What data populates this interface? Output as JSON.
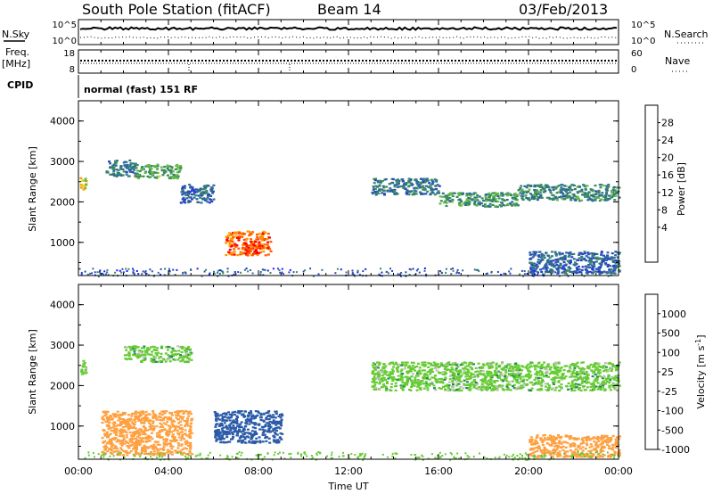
{
  "header": {
    "station": "South Pole Station (fitACF)",
    "beam": "Beam 14",
    "date": "03/Feb/2013"
  },
  "top_panels": {
    "nsky_label": "N.Sky",
    "nsky_ticks": [
      "10^5",
      "10^0"
    ],
    "nsearch_label": "N.Search",
    "nsearch_ticks": [
      "10^5",
      "10^0"
    ],
    "freq_label_line1": "Freq.",
    "freq_label_line2": "[MHz]",
    "freq_ticks": [
      "18",
      "8"
    ],
    "nave_label": "Nave",
    "nave_ticks": [
      "60",
      "0"
    ],
    "cpid_label": "CPID",
    "cpid_text": "normal (fast) 151 RF"
  },
  "x_axis": {
    "label": "Time UT",
    "ticks": [
      "00:00",
      "04:00",
      "08:00",
      "12:00",
      "16:00",
      "20:00",
      "00:00"
    ]
  },
  "colors": {
    "power": [
      "#1a1aff",
      "#2a44c8",
      "#2e6c96",
      "#3a8a60",
      "#66bb44",
      "#e0d030",
      "#ff9a00",
      "#ff5a00",
      "#ff0000"
    ],
    "velocity": [
      "#ff0000",
      "#ff6a00",
      "#ffa040",
      "#c0c0b8",
      "#66cc33",
      "#2a8a5a",
      "#2a5aa8",
      "#1a3ad0"
    ]
  },
  "chart_data": [
    {
      "type": "heatmap",
      "name": "power",
      "ylabel": "Slant Range [km]",
      "ylim": [
        180,
        4500
      ],
      "yticks": [
        "4000",
        "3000",
        "2000",
        "1000"
      ],
      "xlim": [
        0,
        24
      ],
      "colorbar": {
        "label": "Power [dB]",
        "ticks": [
          "28",
          "24",
          "20",
          "16",
          "12",
          "8",
          "4"
        ],
        "range": [
          0,
          32
        ]
      },
      "features": [
        {
          "t0": 0.0,
          "t1": 0.3,
          "r0": 2300,
          "r1": 2650,
          "value": 20
        },
        {
          "t0": 1.2,
          "t1": 2.5,
          "r0": 2650,
          "r1": 3050,
          "value": 10
        },
        {
          "t0": 2.5,
          "t1": 4.5,
          "r0": 2600,
          "r1": 2950,
          "value": 14
        },
        {
          "t0": 4.5,
          "t1": 6.0,
          "r0": 2000,
          "r1": 2450,
          "value": 8
        },
        {
          "t0": 6.5,
          "t1": 8.5,
          "r0": 700,
          "r1": 1300,
          "value": 26
        },
        {
          "t0": 7.3,
          "t1": 8.0,
          "r0": 750,
          "r1": 1050,
          "value": 30
        },
        {
          "t0": 13.0,
          "t1": 16.0,
          "r0": 2200,
          "r1": 2600,
          "value": 10
        },
        {
          "t0": 16.0,
          "t1": 19.5,
          "r0": 1900,
          "r1": 2250,
          "value": 13
        },
        {
          "t0": 19.5,
          "t1": 24.0,
          "r0": 2050,
          "r1": 2450,
          "value": 11
        },
        {
          "t0": 20.0,
          "t1": 24.0,
          "r0": 250,
          "r1": 800,
          "value": 8
        }
      ]
    },
    {
      "type": "heatmap",
      "name": "velocity",
      "ylabel": "Slant Range [km]",
      "ylim": [
        180,
        4500
      ],
      "yticks": [
        "4000",
        "3000",
        "2000",
        "1000"
      ],
      "xlim": [
        0,
        24
      ],
      "colorbar": {
        "label": "Velocity [m s^-1]",
        "ticks": [
          "1000",
          "500",
          "100",
          "25",
          "-25",
          "-100",
          "-500",
          "-1000"
        ]
      },
      "features": [
        {
          "t0": 0.0,
          "t1": 0.3,
          "r0": 2300,
          "r1": 2650,
          "value": 0
        },
        {
          "t0": 2.0,
          "t1": 5.0,
          "r0": 2600,
          "r1": 3000,
          "value": 0
        },
        {
          "t0": 1.0,
          "t1": 5.0,
          "r0": 300,
          "r1": 1400,
          "value": -300
        },
        {
          "t0": 6.0,
          "t1": 9.0,
          "r0": 600,
          "r1": 1400,
          "value": 200
        },
        {
          "t0": 13.0,
          "t1": 24.0,
          "r0": 1900,
          "r1": 2600,
          "value": 0
        },
        {
          "t0": 20.0,
          "t1": 24.0,
          "r0": 250,
          "r1": 800,
          "value": -300
        }
      ]
    }
  ]
}
